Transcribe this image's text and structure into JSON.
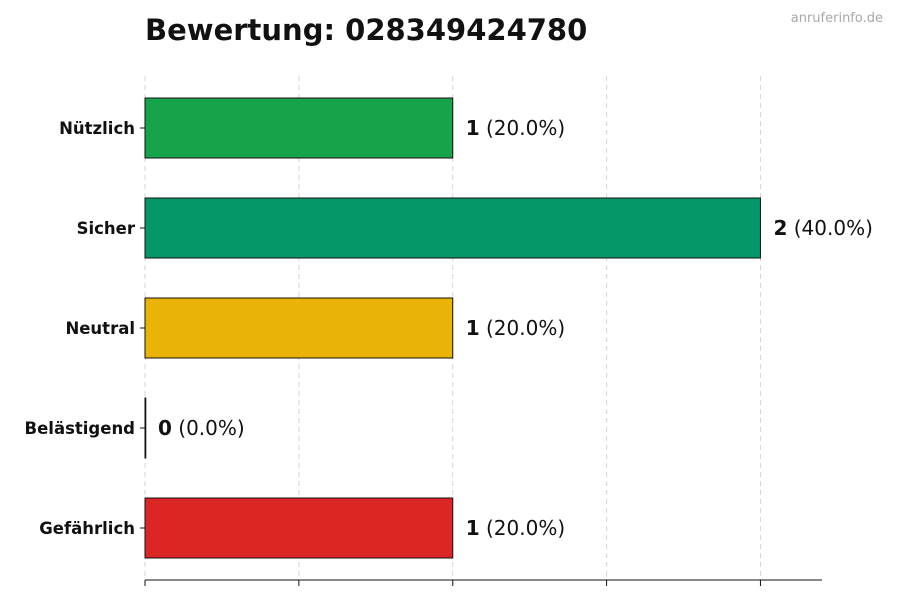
{
  "title": "Bewertung: 028349424780",
  "watermark": "anruferinfo.de",
  "chart_data": {
    "type": "bar",
    "orientation": "horizontal",
    "title": "Bewertung: 028349424780",
    "xlabel": "",
    "ylabel": "",
    "xlim": [
      0,
      2.2
    ],
    "grid": "vertical dashed",
    "categories": [
      "Nützlich",
      "Sicher",
      "Neutral",
      "Belästigend",
      "Gefährlich"
    ],
    "values": [
      1,
      2,
      1,
      0,
      1
    ],
    "percent_labels": [
      "(20.0%)",
      "(40.0%)",
      "(20.0%)",
      "(0.0%)",
      "(20.0%)"
    ],
    "colors": [
      "#16a34a",
      "#059669",
      "#eab308",
      "#ea580c",
      "#dc2626"
    ]
  }
}
